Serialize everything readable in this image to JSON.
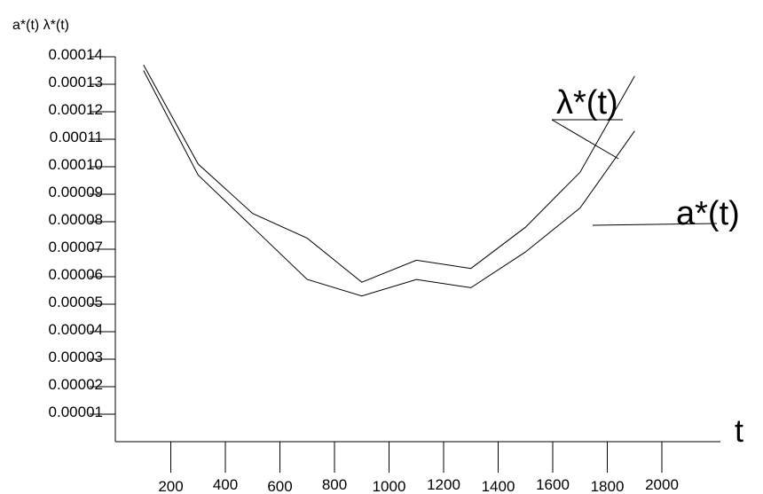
{
  "chart_data": {
    "type": "line",
    "title": "",
    "ylabel": "a*(t) λ*(t)",
    "xlabel": "t",
    "xlim": [
      0,
      2000
    ],
    "ylim": [
      0,
      0.00014
    ],
    "x_ticks": [
      200,
      400,
      600,
      800,
      1000,
      1200,
      1400,
      1600,
      1800,
      2000
    ],
    "x_tick_labels": [
      "200",
      "400",
      "600",
      "800",
      "1000",
      "1200",
      "1400",
      "1600",
      "1800",
      "2000"
    ],
    "y_ticks": [
      1e-05,
      2e-05,
      3e-05,
      4e-05,
      5e-05,
      6e-05,
      7e-05,
      8e-05,
      9e-05,
      0.0001,
      0.00011,
      0.00012,
      0.00013,
      0.00014
    ],
    "y_tick_labels": [
      "0.00001",
      "0.00002",
      "0.00003",
      "0.00004",
      "0.00005",
      "0.00006",
      "0.00007",
      "0.00008",
      "0.00009",
      "0.00010",
      "0.00011",
      "0.00012",
      "0.00013",
      "0.00014"
    ],
    "grid": false,
    "series": [
      {
        "name": "λ*(t)",
        "x": [
          100,
          300,
          500,
          700,
          900,
          1100,
          1300,
          1500,
          1700,
          1900
        ],
        "y": [
          0.000137,
          0.000101,
          8.3e-05,
          7.4e-05,
          5.8e-05,
          6.6e-05,
          6.3e-05,
          7.8e-05,
          9.8e-05,
          0.000133
        ]
      },
      {
        "name": "a*(t)",
        "x": [
          100,
          300,
          500,
          700,
          900,
          1100,
          1300,
          1500,
          1700,
          1900
        ],
        "y": [
          0.000135,
          9.7e-05,
          7.8e-05,
          5.9e-05,
          5.3e-05,
          5.9e-05,
          5.6e-05,
          6.9e-05,
          8.5e-05,
          0.000113
        ]
      }
    ]
  }
}
